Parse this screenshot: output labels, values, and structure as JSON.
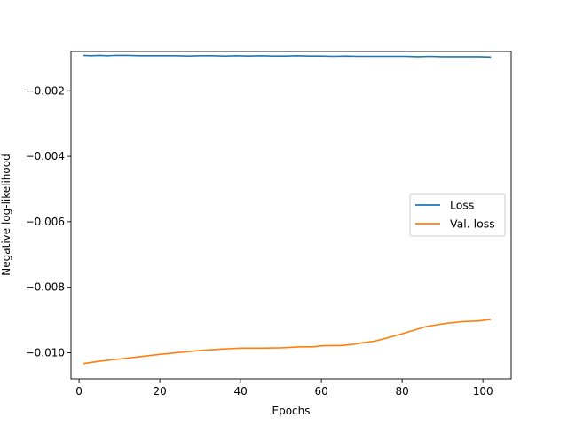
{
  "chart_data": {
    "type": "line",
    "title": "",
    "xlabel": "Epochs",
    "ylabel": "Negative log-likelihood",
    "xlim": [
      -2,
      107
    ],
    "ylim": [
      -0.0108,
      -0.0008
    ],
    "xticks": [
      0,
      20,
      40,
      60,
      80,
      100
    ],
    "xtick_labels": [
      "0",
      "20",
      "40",
      "60",
      "80",
      "100"
    ],
    "yticks": [
      -0.002,
      -0.004,
      -0.006,
      -0.008,
      -0.01
    ],
    "ytick_labels": [
      "−0.002",
      "−0.004",
      "−0.006",
      "−0.008",
      "−0.010"
    ],
    "grid": false,
    "legend_position": "center-right",
    "series": [
      {
        "name": "Loss",
        "color": "#1f77b4",
        "x": [
          1,
          3,
          5,
          7,
          9,
          12,
          15,
          18,
          21,
          24,
          27,
          30,
          33,
          36,
          39,
          42,
          45,
          48,
          51,
          54,
          57,
          60,
          63,
          66,
          69,
          72,
          75,
          78,
          81,
          84,
          87,
          90,
          93,
          96,
          99,
          102
        ],
        "y": [
          -0.00092,
          -0.00093,
          -0.00092,
          -0.00093,
          -0.00092,
          -0.00092,
          -0.00093,
          -0.00093,
          -0.00093,
          -0.00093,
          -0.00094,
          -0.00093,
          -0.00093,
          -0.00094,
          -0.00093,
          -0.00094,
          -0.00093,
          -0.00094,
          -0.00094,
          -0.00093,
          -0.00094,
          -0.00094,
          -0.00095,
          -0.00094,
          -0.00095,
          -0.00095,
          -0.00095,
          -0.00095,
          -0.00095,
          -0.00096,
          -0.00095,
          -0.00096,
          -0.00096,
          -0.00096,
          -0.00096,
          -0.00097
        ]
      },
      {
        "name": "Val. loss",
        "color": "#ff7f0e",
        "x": [
          1,
          5,
          10,
          15,
          20,
          25,
          30,
          35,
          40,
          45,
          50,
          55,
          58,
          60,
          63,
          65,
          68,
          70,
          73,
          76,
          80,
          83,
          86,
          88,
          91,
          95,
          99,
          102
        ],
        "y": [
          -0.01033,
          -0.01026,
          -0.01019,
          -0.01012,
          -0.01005,
          -0.00999,
          -0.00993,
          -0.00989,
          -0.00986,
          -0.00986,
          -0.00985,
          -0.00982,
          -0.00982,
          -0.00979,
          -0.00978,
          -0.00978,
          -0.00974,
          -0.0097,
          -0.00965,
          -0.00956,
          -0.00942,
          -0.00931,
          -0.0092,
          -0.00916,
          -0.0091,
          -0.00905,
          -0.00903,
          -0.00898
        ]
      }
    ]
  }
}
